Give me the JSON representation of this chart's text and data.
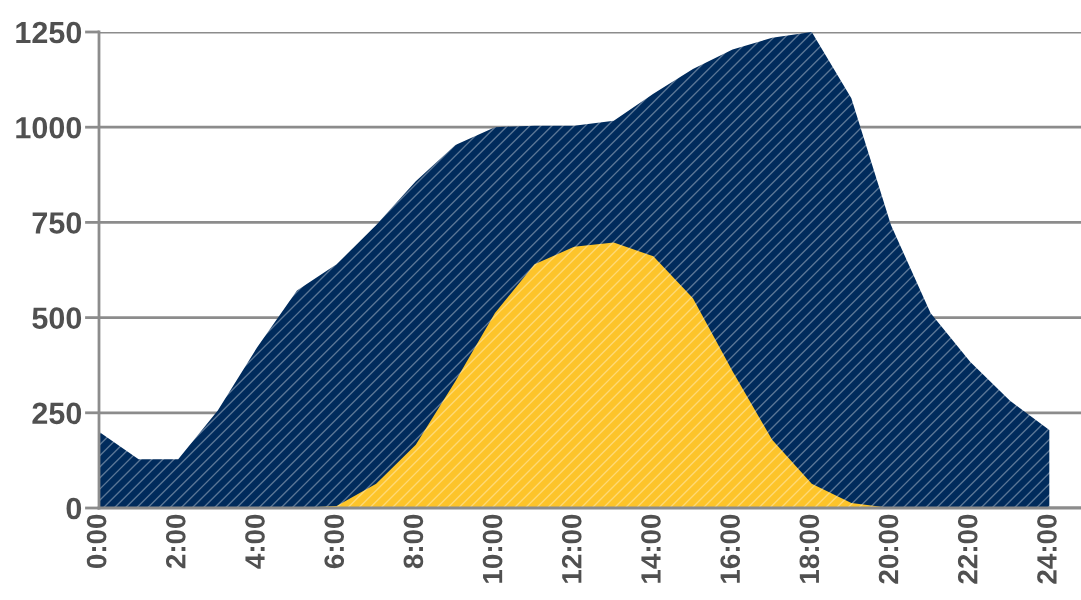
{
  "chart_data": {
    "type": "area",
    "x": [
      0,
      1,
      2,
      3,
      4,
      5,
      6,
      7,
      8,
      9,
      10,
      11,
      12,
      13,
      14,
      15,
      16,
      17,
      18,
      19,
      20,
      21,
      22,
      23,
      24
    ],
    "series": [
      {
        "color": "#002b5c",
        "values": [
          200,
          128,
          128,
          256,
          423,
          571,
          640,
          743,
          858,
          953,
          1000,
          1004,
          1004,
          1017,
          1088,
          1153,
          1204,
          1235,
          1250,
          1076,
          743,
          512,
          384,
          282,
          205
        ]
      },
      {
        "color": "#fdc42a",
        "values": [
          0,
          0,
          0,
          0,
          0,
          0,
          5,
          64,
          166,
          333,
          512,
          640,
          686,
          697,
          661,
          551,
          359,
          179,
          64,
          13,
          0,
          0,
          0,
          0,
          0
        ]
      }
    ],
    "xlim": [
      0,
      24.8
    ],
    "xticks": [
      {
        "value": 0,
        "label": "0:00"
      },
      {
        "value": 2,
        "label": "2:00"
      },
      {
        "value": 4,
        "label": "4:00"
      },
      {
        "value": 6,
        "label": "6:00"
      },
      {
        "value": 8,
        "label": "8:00"
      },
      {
        "value": 10,
        "label": "10:00"
      },
      {
        "value": 12,
        "label": "12:00"
      },
      {
        "value": 14,
        "label": "14:00"
      },
      {
        "value": 16,
        "label": "16:00"
      },
      {
        "value": 18,
        "label": "18:00"
      },
      {
        "value": 20,
        "label": "20:00"
      },
      {
        "value": 22,
        "label": "22:00"
      },
      {
        "value": 24,
        "label": "24:00"
      }
    ],
    "ylim": [
      0,
      1250
    ],
    "yticks": [
      0,
      250,
      500,
      750,
      1000,
      1250
    ],
    "grid": "y"
  }
}
